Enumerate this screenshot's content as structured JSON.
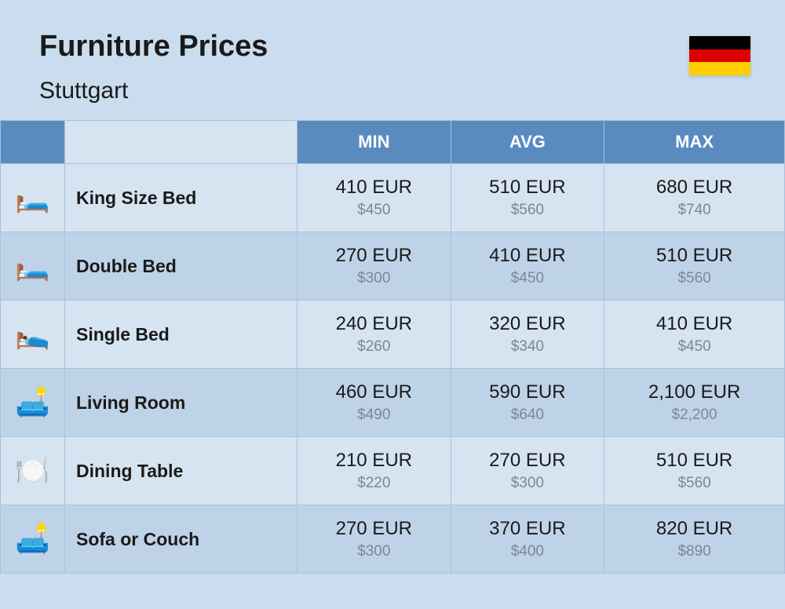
{
  "header": {
    "title": "Furniture Prices",
    "city": "Stuttgart",
    "flag_colors": [
      "#000000",
      "#dd0000",
      "#ffce00"
    ]
  },
  "columns": {
    "min": "MIN",
    "avg": "AVG",
    "max": "MAX"
  },
  "rows": [
    {
      "icon": "🛏️",
      "name": "King Size Bed",
      "min_eur": "410 EUR",
      "min_usd": "$450",
      "avg_eur": "510 EUR",
      "avg_usd": "$560",
      "max_eur": "680 EUR",
      "max_usd": "$740"
    },
    {
      "icon": "🛏️",
      "name": "Double Bed",
      "min_eur": "270 EUR",
      "min_usd": "$300",
      "avg_eur": "410 EUR",
      "avg_usd": "$450",
      "max_eur": "510 EUR",
      "max_usd": "$560"
    },
    {
      "icon": "🛌",
      "name": "Single Bed",
      "min_eur": "240 EUR",
      "min_usd": "$260",
      "avg_eur": "320 EUR",
      "avg_usd": "$340",
      "max_eur": "410 EUR",
      "max_usd": "$450"
    },
    {
      "icon": "🛋️",
      "name": "Living Room",
      "min_eur": "460 EUR",
      "min_usd": "$490",
      "avg_eur": "590 EUR",
      "avg_usd": "$640",
      "max_eur": "2,100 EUR",
      "max_usd": "$2,200"
    },
    {
      "icon": "🍽️",
      "name": "Dining Table",
      "min_eur": "210 EUR",
      "min_usd": "$220",
      "avg_eur": "270 EUR",
      "avg_usd": "$300",
      "max_eur": "510 EUR",
      "max_usd": "$560"
    },
    {
      "icon": "🛋️",
      "name": "Sofa or Couch",
      "min_eur": "270 EUR",
      "min_usd": "$300",
      "avg_eur": "370 EUR",
      "avg_usd": "$400",
      "max_eur": "820 EUR",
      "max_usd": "$890"
    }
  ],
  "styling": {
    "type": "table",
    "background_color": "#c9ddee",
    "header_bg": "#5a8bbf",
    "header_text_color": "#ffffff",
    "row_odd_bg": "#d6e4f1",
    "row_even_bg": "#bed3e8",
    "border_color": "#a8c1db",
    "title_fontsize": 38,
    "subtitle_fontsize": 30,
    "column_header_fontsize": 22,
    "item_name_fontsize": 23,
    "price_eur_fontsize": 24,
    "price_usd_fontsize": 19,
    "price_usd_color": "#7a8896"
  }
}
